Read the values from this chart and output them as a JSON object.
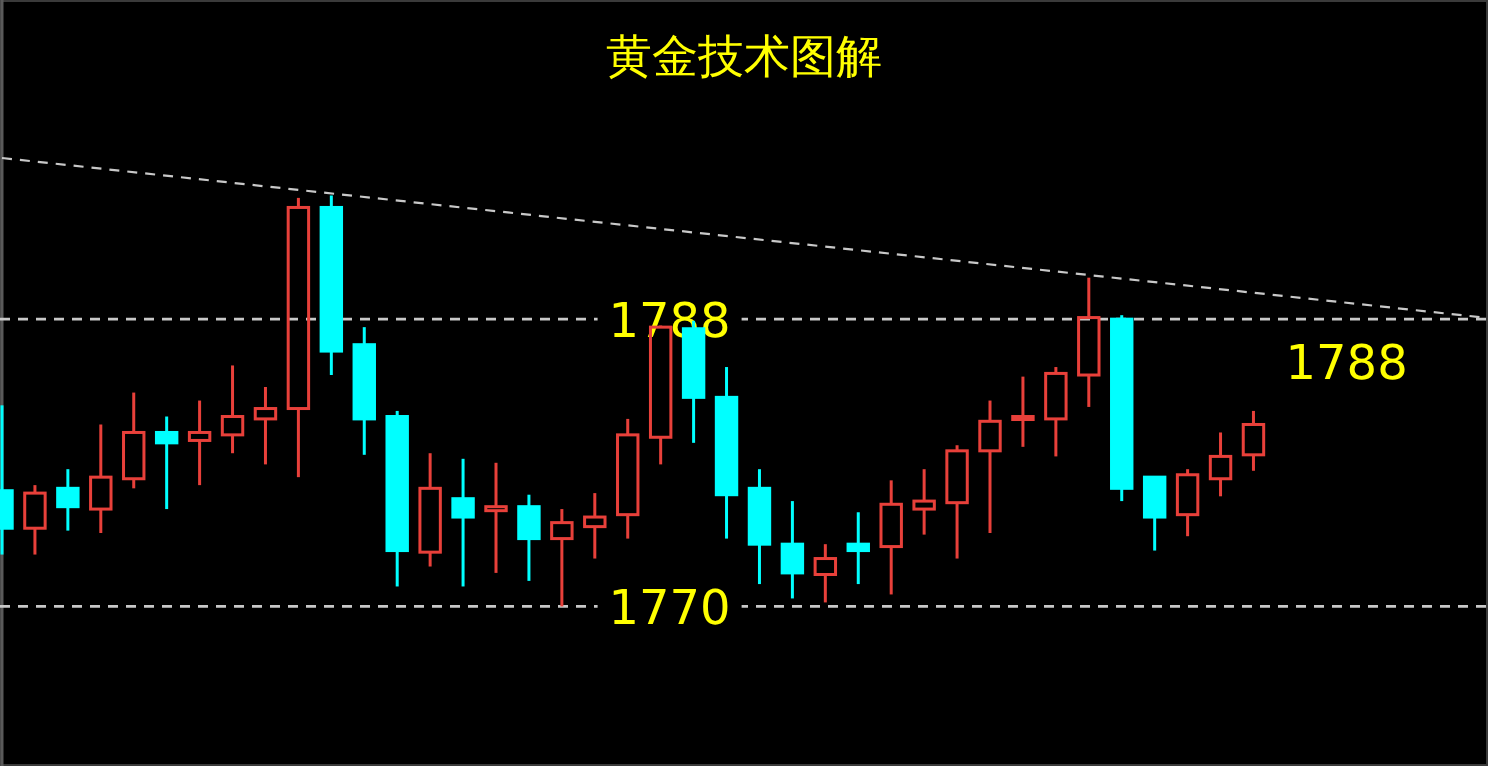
{
  "chart_data": {
    "type": "candlestick",
    "title": "黄金技术图解",
    "categories": [
      null,
      null,
      null,
      null,
      null,
      null,
      null,
      null,
      null,
      null,
      null,
      null,
      null,
      null,
      null,
      null,
      null,
      null,
      null,
      null,
      null,
      null,
      null,
      null,
      null,
      null,
      null,
      null,
      null,
      null,
      null,
      null,
      null,
      null,
      null,
      null,
      null,
      null,
      null,
      null,
      null,
      null,
      null,
      null,
      null,
      null
    ],
    "ohlc": [
      [
        1777.25,
        1782.6,
        1773.25,
        1774.9
      ],
      [
        1774.9,
        1777.6,
        1773.25,
        1777.1
      ],
      [
        1777.4,
        1778.6,
        1774.75,
        1776.25
      ],
      [
        1776.1,
        1781.4,
        1774.6,
        1778.1
      ],
      [
        1778,
        1783.4,
        1777.4,
        1780.9
      ],
      [
        1780.9,
        1781.9,
        1776.1,
        1780.25
      ],
      [
        1780.4,
        1782.9,
        1777.6,
        1780.9
      ],
      [
        1780.75,
        1785.1,
        1779.6,
        1781.9
      ],
      [
        1781.75,
        1783.75,
        1778.9,
        1782.4
      ],
      [
        1782.4,
        1795.6,
        1778.1,
        1795
      ],
      [
        1795,
        1795.75,
        1784.5,
        1786
      ],
      [
        1786.4,
        1787.5,
        1779.5,
        1781.75
      ],
      [
        1781.9,
        1782.25,
        1771.25,
        1773.5
      ],
      [
        1773.4,
        1779.6,
        1772.5,
        1777.4
      ],
      [
        1776.75,
        1779.25,
        1771.25,
        1775.6
      ],
      [
        1776,
        1779,
        1772.1,
        1776.25
      ],
      [
        1776.25,
        1777,
        1771.6,
        1774.25
      ],
      [
        1774.25,
        1776.1,
        1770,
        1775.25
      ],
      [
        1775,
        1777.1,
        1773,
        1775.6
      ],
      [
        1775.75,
        1781.75,
        1774.25,
        1780.75
      ],
      [
        1780.6,
        1787.6,
        1778.9,
        1787.5
      ],
      [
        1787.4,
        1787.9,
        1780.25,
        1783.1
      ],
      [
        1783.1,
        1785,
        1774.25,
        1777
      ],
      [
        1777.4,
        1778.6,
        1771.4,
        1773.9
      ],
      [
        1773.9,
        1776.6,
        1770.5,
        1772.1
      ],
      [
        1772,
        1773.9,
        1770.25,
        1773
      ],
      [
        1773.9,
        1775.9,
        1771.4,
        1773.5
      ],
      [
        1773.75,
        1777.9,
        1770.75,
        1776.4
      ],
      [
        1776.1,
        1778.6,
        1774.5,
        1776.6
      ],
      [
        1776.5,
        1780.1,
        1773,
        1779.75
      ],
      [
        1779.75,
        1782.9,
        1774.6,
        1781.6
      ],
      [
        1781.75,
        1784.4,
        1780,
        1781.9
      ],
      [
        1781.75,
        1785,
        1779.4,
        1784.6
      ],
      [
        1784.5,
        1790.6,
        1782.5,
        1788.1
      ],
      [
        1788,
        1788.25,
        1776.6,
        1777.4
      ],
      [
        1778.1,
        1778.1,
        1773.5,
        1775.6
      ],
      [
        1775.75,
        1778.6,
        1774.4,
        1778.25
      ],
      [
        1778,
        1780.9,
        1776.9,
        1779.4
      ],
      [
        1779.5,
        1782.25,
        1778.5,
        1781.4
      ],
      null,
      null,
      null,
      null,
      null,
      null,
      null
    ],
    "colors": [
      "#00ffff",
      "#e8403a",
      "#00ffff",
      "#e8403a",
      "#e8403a",
      "#00ffff",
      "#e8403a",
      "#e8403a",
      "#e8403a",
      "#e8403a",
      "#00ffff",
      "#00ffff",
      "#00ffff",
      "#e8403a",
      "#00ffff",
      "#e8403a",
      "#00ffff",
      "#e8403a",
      "#e8403a",
      "#e8403a",
      "#e8403a",
      "#00ffff",
      "#00ffff",
      "#00ffff",
      "#00ffff",
      "#e8403a",
      "#00ffff",
      "#e8403a",
      "#e8403a",
      "#e8403a",
      "#e8403a",
      "#e8403a",
      "#e8403a",
      "#e8403a",
      "#00ffff",
      "#00ffff",
      "#e8403a",
      "#e8403a",
      "#e8403a",
      null,
      null,
      null,
      null,
      null,
      null,
      null
    ],
    "series": [
      {
        "type": "line",
        "values": [
          1798.1,
          null,
          null,
          null,
          null,
          null,
          null,
          null,
          null,
          null,
          null,
          null,
          null,
          null,
          null,
          null,
          null,
          null,
          null,
          null,
          null,
          null,
          null,
          null,
          null,
          null,
          null,
          null,
          null,
          null,
          null,
          null,
          null,
          null,
          null,
          null,
          null,
          null,
          null,
          null,
          null,
          null,
          null,
          null,
          null,
          1788.1
        ],
        "color": "#c8c8c8",
        "line_style": "dashed"
      }
    ],
    "ylim": [
      1760,
      1808
    ],
    "yticks": [
      1770,
      1788
    ],
    "grid": "y",
    "annotations": [
      "1788"
    ]
  }
}
